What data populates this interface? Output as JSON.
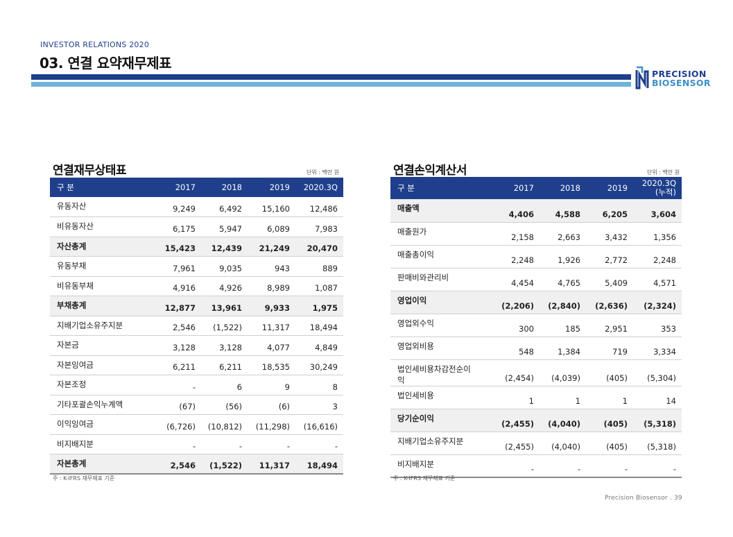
{
  "header": {
    "ir_label": "INVESTOR RELATIONS 2020",
    "title": "03. 연결 요약재무제표",
    "colors": {
      "primary": "#1f3f8c",
      "accent": "#6fb3dc"
    }
  },
  "logo": {
    "line1": "PRECISION",
    "line2": "BIOSENSOR"
  },
  "balance_sheet": {
    "title": "연결재무상태표",
    "unit": "단위 : 백만 원",
    "columns": [
      "구 분",
      "2017",
      "2018",
      "2019",
      "2020.3Q"
    ],
    "rows": [
      [
        "유동자산",
        "9,249",
        "6,492",
        "15,160",
        "12,486"
      ],
      [
        "비유동자산",
        "6,175",
        "5,947",
        "6,089",
        "7,983"
      ],
      [
        "자산총계",
        "15,423",
        "12,439",
        "21,249",
        "20,470"
      ],
      [
        "유동부채",
        "7,961",
        "9,035",
        "943",
        "889"
      ],
      [
        "비유동부채",
        "4,916",
        "4,926",
        "8,989",
        "1,087"
      ],
      [
        "부채총계",
        "12,877",
        "13,961",
        "9,933",
        "1,975"
      ],
      [
        "지배기업소유주지분",
        "2,546",
        "(1,522)",
        "11,317",
        "18,494"
      ],
      [
        "자본금",
        "3,128",
        "3,128",
        "4,077",
        "4,849"
      ],
      [
        "자본잉여금",
        "6,211",
        "6,211",
        "18,535",
        "30,249"
      ],
      [
        "자본조정",
        "-",
        "6",
        "9",
        "8"
      ],
      [
        "기타포괄손익누계액",
        "(67)",
        "(56)",
        "(6)",
        "3"
      ],
      [
        "이익잉여금",
        "(6,726)",
        "(10,812)",
        "(11,298)",
        "(16,616)"
      ],
      [
        "비지배지분",
        "-",
        "-",
        "-",
        "-"
      ],
      [
        "자본총계",
        "2,546",
        "(1,522)",
        "11,317",
        "18,494"
      ]
    ],
    "total_rows": [
      2,
      5,
      13
    ],
    "note": "주 : K-IFRS 재무제표 기준"
  },
  "income_statement": {
    "title": "연결손익계산서",
    "unit": "단위 : 백만 원",
    "columns": [
      "구 분",
      "2017",
      "2018",
      "2019",
      "2020.3Q\n(누적)"
    ],
    "rows": [
      [
        "매출액",
        "4,406",
        "4,588",
        "6,205",
        "3,604"
      ],
      [
        "매출원가",
        "2,158",
        "2,663",
        "3,432",
        "1,356"
      ],
      [
        "매출총이익",
        "2,248",
        "1,926",
        "2,772",
        "2,248"
      ],
      [
        "판매비와관리비",
        "4,454",
        "4,765",
        "5,409",
        "4,571"
      ],
      [
        "영업이익",
        "(2,206)",
        "(2,840)",
        "(2,636)",
        "(2,324)"
      ],
      [
        "영업외수익",
        "300",
        "185",
        "2,951",
        "353"
      ],
      [
        "영업외비용",
        "548",
        "1,384",
        "719",
        "3,334"
      ],
      [
        "법인세비용차감전순이익",
        "(2,454)",
        "(4,039)",
        "(405)",
        "(5,304)"
      ],
      [
        "법인세비용",
        "1",
        "1",
        "1",
        "14"
      ],
      [
        "당기순이익",
        "(2,455)",
        "(4,040)",
        "(405)",
        "(5,318)"
      ],
      [
        "지배기업소유주지분",
        "(2,455)",
        "(4,040)",
        "(405)",
        "(5,318)"
      ],
      [
        "비지배지분",
        "-",
        "-",
        "-",
        "-"
      ]
    ],
    "total_rows": [
      0,
      4,
      9
    ],
    "note": "주 : K-IFRS 재무제표 기준"
  },
  "footer": {
    "text": "Precision Biosensor .  39"
  }
}
